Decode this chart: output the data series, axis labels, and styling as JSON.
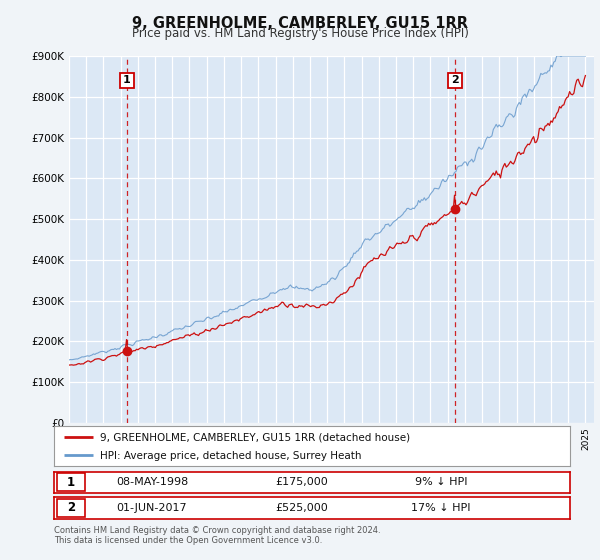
{
  "title": "9, GREENHOLME, CAMBERLEY, GU15 1RR",
  "subtitle": "Price paid vs. HM Land Registry's House Price Index (HPI)",
  "background_color": "#dce8f5",
  "plot_bg_color": "#dce8f5",
  "grid_color": "#ffffff",
  "hpi_color": "#6699cc",
  "price_color": "#cc1111",
  "marker_color": "#cc1111",
  "vline_color": "#cc0000",
  "ylim": [
    0,
    900000
  ],
  "yticks": [
    0,
    100000,
    200000,
    300000,
    400000,
    500000,
    600000,
    700000,
    800000,
    900000
  ],
  "ytick_labels": [
    "£0",
    "£100K",
    "£200K",
    "£300K",
    "£400K",
    "£500K",
    "£600K",
    "£700K",
    "£800K",
    "£900K"
  ],
  "sale1_x": 1998.37,
  "sale1_y": 175000,
  "sale2_x": 2017.42,
  "sale2_y": 525000,
  "legend_label1": "9, GREENHOLME, CAMBERLEY, GU15 1RR (detached house)",
  "legend_label2": "HPI: Average price, detached house, Surrey Heath",
  "table_row1": [
    "1",
    "08-MAY-1998",
    "£175,000",
    "9% ↓ HPI"
  ],
  "table_row2": [
    "2",
    "01-JUN-2017",
    "£525,000",
    "17% ↓ HPI"
  ],
  "footer": "Contains HM Land Registry data © Crown copyright and database right 2024.\nThis data is licensed under the Open Government Licence v3.0.",
  "xmin": 1995.0,
  "xmax": 2025.5
}
